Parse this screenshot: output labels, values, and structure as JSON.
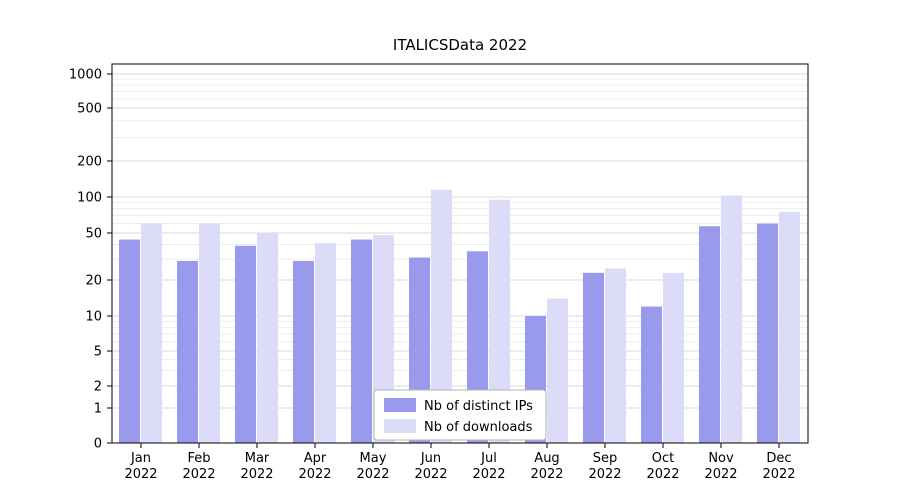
{
  "title": "ITALICSData 2022",
  "chart_data": {
    "type": "bar",
    "title": "ITALICSData 2022",
    "scale": "symlog",
    "categories": [
      "Jan 2022",
      "Feb 2022",
      "Mar 2022",
      "Apr 2022",
      "May 2022",
      "Jun 2022",
      "Jul 2022",
      "Aug 2022",
      "Sep 2022",
      "Oct 2022",
      "Nov 2022",
      "Dec 2022"
    ],
    "series": [
      {
        "name": "Nb of distinct IPs",
        "color": "#9a9aec",
        "values": [
          44,
          29,
          39,
          29,
          44,
          31,
          35,
          10,
          23,
          12,
          57,
          60
        ]
      },
      {
        "name": "Nb of downloads",
        "color": "#dcdcf9",
        "values": [
          60,
          60,
          50,
          41,
          48,
          115,
          95,
          14,
          25,
          23,
          103,
          75
        ]
      }
    ],
    "yticks": [
      0,
      1,
      2,
      5,
      10,
      20,
      50,
      100,
      200,
      500,
      1000
    ],
    "ylim": [
      0,
      1000
    ],
    "xlabel": "",
    "ylabel": "",
    "grid": true,
    "legend_position": "lower center",
    "legend_labels": [
      "Nb of distinct IPs",
      "Nb of downloads"
    ]
  },
  "colors": {
    "background": "#ffffff",
    "grid_major": "#d9d9d9",
    "grid_minor": "#ededed",
    "axis": "#000000",
    "legend_border": "#b3b3b3",
    "legend_bg": "#ffffff"
  }
}
